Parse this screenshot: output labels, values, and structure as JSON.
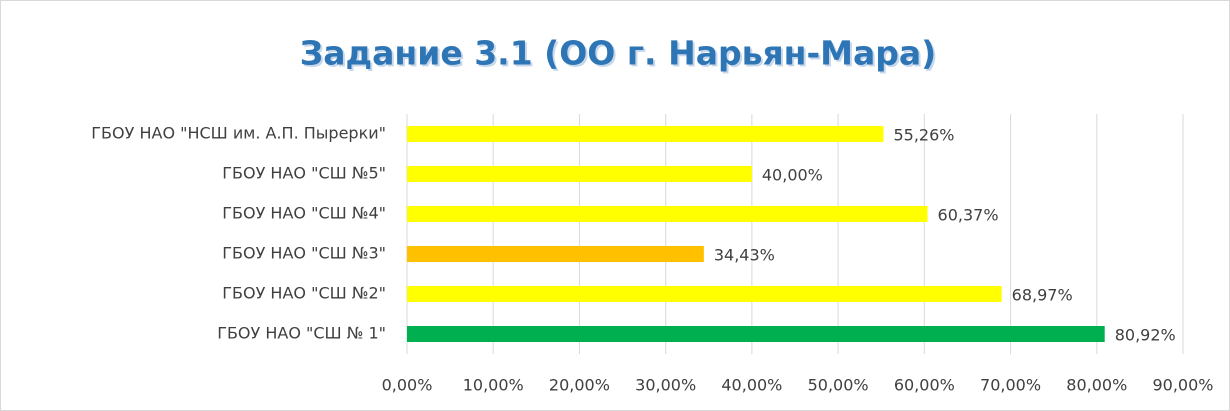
{
  "chart_data": {
    "type": "bar",
    "orientation": "horizontal",
    "title": "Задание  3.1  (ОО г. Нарьян-Мара)",
    "categories": [
      "ГБОУ НАО \"НСШ им. А.П. Пырерки\"",
      "ГБОУ НАО \"СШ №5\"",
      "ГБОУ НАО \"СШ №4\"",
      "ГБОУ НАО \"СШ №3\"",
      "ГБОУ НАО \"СШ №2\"",
      "ГБОУ НАО \"СШ № 1\""
    ],
    "values": [
      55.26,
      40.0,
      60.37,
      34.43,
      68.97,
      80.92
    ],
    "value_labels": [
      "55,26%",
      "40,00%",
      "60,37%",
      "34,43%",
      "68,97%",
      "80,92%"
    ],
    "colors": [
      "#ffff00",
      "#ffff00",
      "#ffff00",
      "#ffc000",
      "#ffff00",
      "#00b050"
    ],
    "xlim": [
      0,
      90
    ],
    "xticks": [
      {
        "value": 0,
        "label": "0,00%"
      },
      {
        "value": 10,
        "label": "10,00%"
      },
      {
        "value": 20,
        "label": "20,00%"
      },
      {
        "value": 30,
        "label": "30,00%"
      },
      {
        "value": 40,
        "label": "40,00%"
      },
      {
        "value": 50,
        "label": "50,00%"
      },
      {
        "value": 60,
        "label": "60,00%"
      },
      {
        "value": 70,
        "label": "70,00%"
      },
      {
        "value": 80,
        "label": "80,00%"
      },
      {
        "value": 90,
        "label": "90,00%"
      }
    ],
    "grid": true
  }
}
